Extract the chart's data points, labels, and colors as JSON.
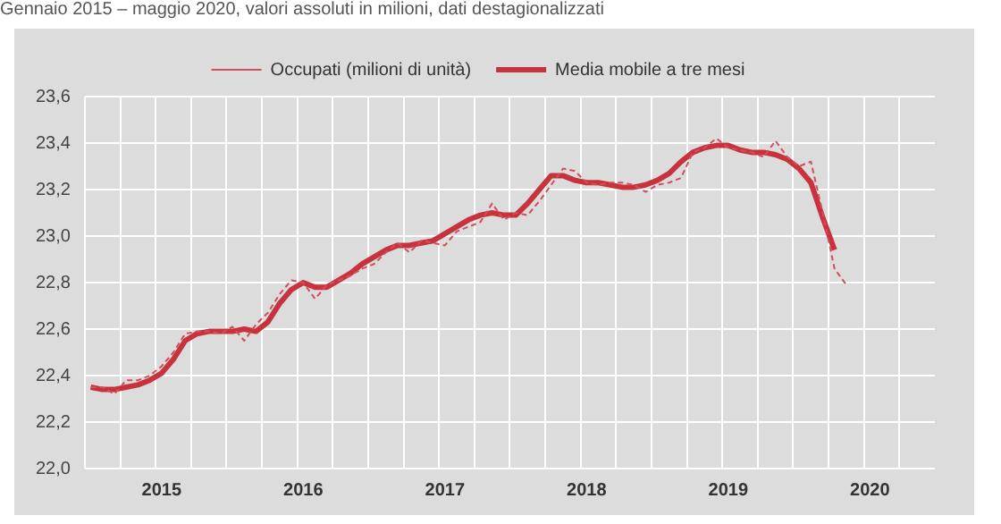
{
  "chart_data": {
    "type": "line",
    "title": "Gennaio 2015 – maggio 2020, valori assoluti in milioni, dati destagionalizzati",
    "categories": [
      null,
      null,
      null,
      null,
      null,
      null,
      "2015",
      null,
      null,
      null,
      null,
      null,
      null,
      null,
      null,
      null,
      null,
      null,
      "2016",
      null,
      null,
      null,
      null,
      null,
      null,
      null,
      null,
      null,
      null,
      null,
      "2017",
      null,
      null,
      null,
      null,
      null,
      null,
      null,
      null,
      null,
      null,
      null,
      "2018",
      null,
      null,
      null,
      null,
      null,
      null,
      null,
      null,
      null,
      null,
      null,
      "2019",
      null,
      null,
      null,
      null,
      null,
      null,
      null,
      null,
      null,
      null,
      null,
      "2020",
      null,
      null,
      null,
      null,
      null
    ],
    "series": [
      {
        "name": "Occupati (milioni di unità)",
        "color": "#d0505a",
        "line_style": "dashed",
        "values": [
          22.35,
          22.35,
          22.32,
          22.38,
          22.38,
          22.4,
          22.44,
          22.5,
          22.58,
          22.59,
          22.59,
          22.58,
          22.61,
          22.55,
          22.62,
          22.67,
          22.75,
          22.81,
          22.8,
          22.73,
          22.79,
          22.81,
          22.83,
          22.86,
          22.88,
          22.93,
          22.97,
          22.93,
          22.98,
          22.97,
          22.96,
          23.02,
          23.04,
          23.06,
          23.14,
          23.07,
          23.1,
          23.09,
          23.15,
          23.22,
          23.29,
          23.28,
          23.23,
          23.22,
          23.23,
          23.23,
          23.22,
          23.19,
          23.22,
          23.23,
          23.25,
          23.36,
          23.38,
          23.42,
          23.38,
          23.37,
          23.36,
          23.34,
          23.41,
          23.34,
          23.3,
          23.32,
          23.1,
          22.86,
          22.79,
          null,
          null,
          null,
          null,
          null,
          null,
          null
        ]
      },
      {
        "name": "Media mobile a tre mesi",
        "color": "#c8323c",
        "line_style": "solid",
        "values": [
          22.35,
          22.34,
          22.34,
          22.35,
          22.36,
          22.38,
          22.41,
          22.47,
          22.55,
          22.58,
          22.59,
          22.59,
          22.59,
          22.6,
          22.59,
          22.63,
          22.71,
          22.77,
          22.8,
          22.78,
          22.78,
          22.81,
          22.84,
          22.88,
          22.91,
          22.94,
          22.96,
          22.96,
          22.97,
          22.98,
          23.01,
          23.04,
          23.07,
          23.09,
          23.1,
          23.09,
          23.09,
          23.14,
          23.2,
          23.26,
          23.26,
          23.24,
          23.23,
          23.23,
          23.22,
          23.21,
          23.21,
          23.22,
          23.24,
          23.27,
          23.32,
          23.36,
          23.38,
          23.39,
          23.39,
          23.37,
          23.36,
          23.36,
          23.35,
          23.33,
          23.29,
          23.23,
          23.08,
          22.94,
          null,
          null,
          null,
          null,
          null,
          null,
          null,
          null
        ]
      }
    ],
    "ylim": [
      22.0,
      23.6
    ],
    "yticks": [
      {
        "value": 22.0,
        "label": "22,0"
      },
      {
        "value": 22.2,
        "label": "22,2"
      },
      {
        "value": 22.4,
        "label": "22,4"
      },
      {
        "value": 22.6,
        "label": "22,6"
      },
      {
        "value": 22.8,
        "label": "22,8"
      },
      {
        "value": 23.0,
        "label": "23,0"
      },
      {
        "value": 23.2,
        "label": "23,2"
      },
      {
        "value": 23.4,
        "label": "23,4"
      },
      {
        "value": 23.6,
        "label": "23,6"
      }
    ],
    "grid": true,
    "legend": "top",
    "marker": "none"
  }
}
